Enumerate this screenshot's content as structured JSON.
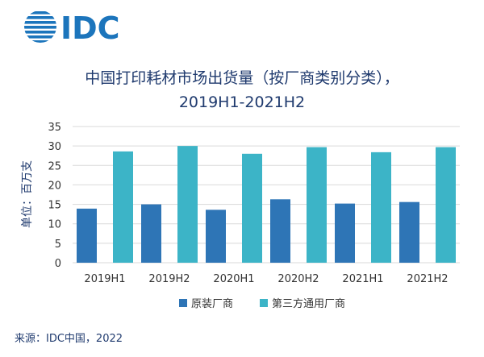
{
  "brand": {
    "logo_text": "IDC",
    "color": "#1c75bc"
  },
  "source": "来源：IDC中国，2022",
  "colors": {
    "series_0": "#2e75b6",
    "series_1": "#3cb4c7",
    "grid": "#d9d9d9",
    "title": "#1f3a6e"
  },
  "chart_data": {
    "type": "bar",
    "title": "中国打印耗材市场出货量（按厂商类别分类），",
    "subtitle": "2019H1-2021H2",
    "ylabel": "单位：百万支",
    "xlabel": "",
    "ylim": [
      0,
      35
    ],
    "yticks": [
      0,
      5,
      10,
      15,
      20,
      25,
      30,
      35
    ],
    "grid": true,
    "legend_position": "bottom",
    "categories": [
      "2019H1",
      "2019H2",
      "2020H1",
      "2020H2",
      "2021H1",
      "2021H2"
    ],
    "series": [
      {
        "name": "原装厂商",
        "values": [
          13.9,
          15.0,
          13.6,
          16.3,
          15.2,
          15.6
        ]
      },
      {
        "name": "第三方通用厂商",
        "values": [
          28.6,
          30.0,
          28.0,
          29.7,
          28.4,
          29.7
        ]
      }
    ]
  }
}
